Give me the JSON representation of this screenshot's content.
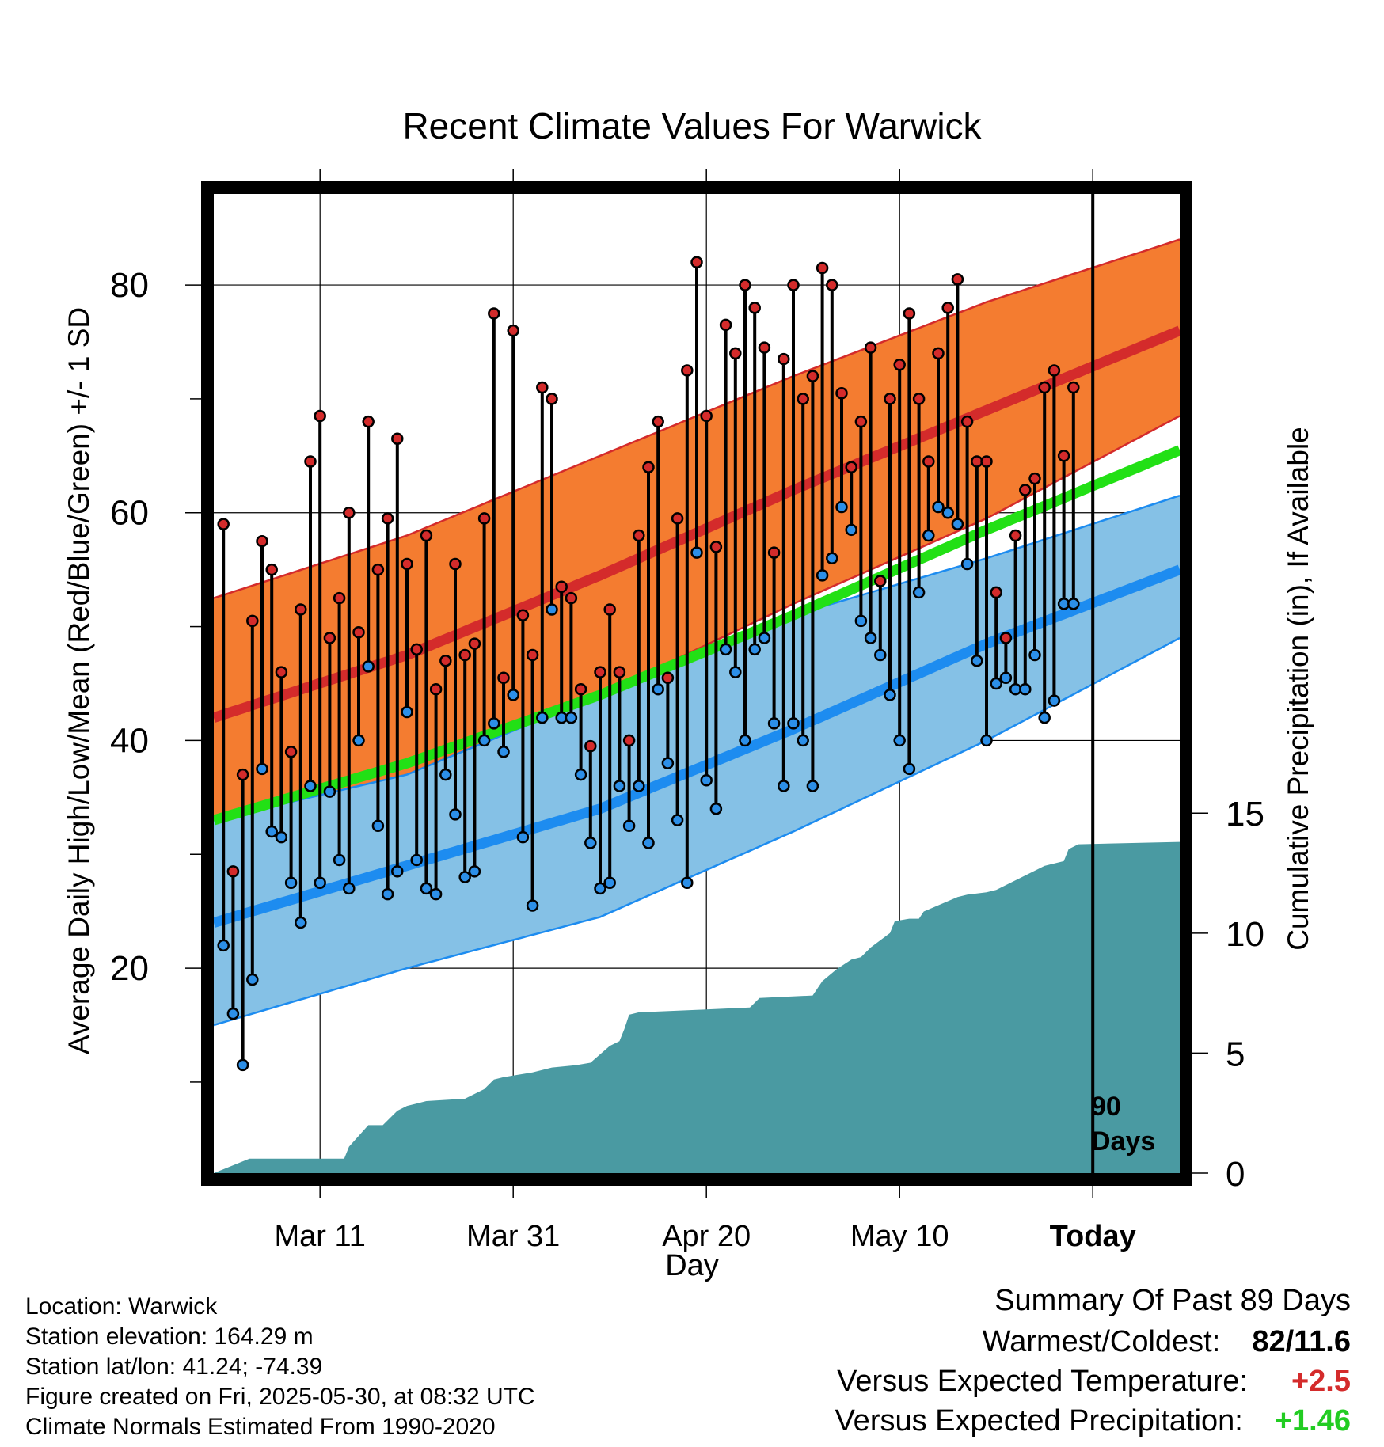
{
  "chart_data": {
    "type": "line",
    "title": "Recent Climate Values For Warwick",
    "xlabel": "Day",
    "ylabel": "Average Daily High/Low/Mean (Red/Blue/Green) +/- 1 SD",
    "y2label": "Cumulative Precipitation (in), If Available",
    "x_tick_labels": [
      "Mar 11",
      "Mar 31",
      "Apr 20",
      "May 10",
      "Today"
    ],
    "x_tick_days": [
      11,
      31,
      51,
      71,
      91
    ],
    "x_range_days": [
      0,
      100
    ],
    "today_day": 91,
    "today_window_label": "90 Days",
    "y_ticks": [
      "20",
      "40",
      "60",
      "80"
    ],
    "y_range": [
      2,
      88
    ],
    "y2_ticks": [
      "0",
      "5",
      "10",
      "15"
    ],
    "y2_range": [
      0,
      40.8
    ],
    "grid": true,
    "colors": {
      "high_band": "#f47c30",
      "high_line": "#d42b2b",
      "low_band": "#85c1e6",
      "low_line": "#1d8cf0",
      "mean_line": "#22e015",
      "precip": "#4a9aa2",
      "daily_high_dot": "#d42b2b",
      "daily_low_dot": "#2c8fe8",
      "positive_temp": "#d42b2b",
      "positive_precip": "#22cc22"
    },
    "normal_high": {
      "x": [
        0,
        20,
        40,
        60,
        80,
        100
      ],
      "mean": [
        42,
        47.5,
        54.5,
        62,
        69,
        76
      ],
      "upper": [
        52.5,
        58,
        65,
        72,
        78.5,
        84
      ],
      "lower": [
        31.5,
        37,
        44,
        52,
        59.5,
        68.5
      ]
    },
    "normal_mean": {
      "x": [
        0,
        20,
        40,
        60,
        80,
        100
      ],
      "values": [
        33,
        38,
        44,
        51,
        58.5,
        65.5
      ]
    },
    "normal_low": {
      "x": [
        0,
        20,
        40,
        60,
        80,
        100
      ],
      "mean": [
        24,
        29,
        34,
        41,
        48.5,
        55
      ],
      "upper": [
        33,
        37,
        44,
        51,
        56,
        61.5
      ],
      "lower": [
        15,
        20,
        24.5,
        32,
        40,
        49
      ]
    },
    "daily_high": [
      59,
      28.5,
      37,
      50.5,
      57.5,
      55,
      46,
      39,
      51.5,
      64.5,
      68.5,
      49,
      52.5,
      60,
      49.5,
      68,
      55,
      59.5,
      66.5,
      55.5,
      48,
      58,
      44.5,
      47,
      55.5,
      47.5,
      48.5,
      59.5,
      77.5,
      45.5,
      76,
      51,
      47.5,
      71,
      70,
      53.5,
      52.5,
      44.5,
      39.5,
      46,
      51.5,
      46,
      40,
      58,
      64,
      68,
      45.5,
      59.5,
      72.5,
      82,
      68.5,
      57,
      76.5,
      74,
      80,
      78,
      74.5,
      56.5,
      73.5,
      80,
      70,
      72,
      81.5,
      80,
      70.5,
      64,
      68,
      74.5,
      54,
      70,
      73,
      77.5,
      70,
      64.5,
      74,
      78,
      80.5,
      68,
      64.5,
      64.5,
      53,
      49,
      58,
      62,
      63,
      71,
      72.5,
      65,
      71
    ],
    "daily_low": [
      22,
      16,
      11.5,
      19,
      37.5,
      32,
      31.5,
      27.5,
      24,
      36,
      27.5,
      35.5,
      29.5,
      27,
      40,
      46.5,
      32.5,
      26.5,
      28.5,
      42.5,
      29.5,
      27,
      26.5,
      37,
      33.5,
      28,
      28.5,
      40,
      41.5,
      39,
      44,
      31.5,
      25.5,
      42,
      51.5,
      42,
      42,
      37,
      31,
      27,
      27.5,
      36,
      32.5,
      36,
      31,
      44.5,
      38,
      33,
      27.5,
      56.5,
      36.5,
      34,
      48,
      46,
      40,
      48,
      49,
      41.5,
      36,
      41.5,
      40,
      36,
      54.5,
      56,
      60.5,
      58.5,
      50.5,
      49,
      47.5,
      44,
      40,
      37.5,
      53,
      58,
      60.5,
      60,
      59,
      55.5,
      47,
      40,
      45,
      45.5,
      44.5,
      44.5,
      47.5,
      42,
      43.5,
      52,
      52
    ],
    "precip_cumulative": {
      "x": [
        0,
        3.7,
        13.5,
        14,
        16,
        17.5,
        19,
        20,
        21,
        22,
        26,
        28,
        29,
        30,
        33,
        35,
        37.5,
        39,
        41,
        42,
        42.5,
        43,
        44,
        50,
        55.5,
        56.5,
        62,
        63,
        64.5,
        66,
        67,
        68,
        70,
        70.5,
        72,
        73,
        73.5,
        77,
        78,
        80,
        81,
        86,
        88,
        88.5,
        89.5,
        100
      ],
      "values": [
        0,
        0.6,
        0.6,
        1.1,
        2.0,
        2.0,
        2.6,
        2.8,
        2.9,
        3.0,
        3.1,
        3.5,
        3.9,
        4.0,
        4.2,
        4.4,
        4.5,
        4.6,
        5.3,
        5.5,
        6.0,
        6.6,
        6.7,
        6.8,
        6.9,
        7.3,
        7.4,
        8.0,
        8.5,
        8.9,
        9.0,
        9.4,
        10.0,
        10.5,
        10.6,
        10.6,
        10.9,
        11.5,
        11.6,
        11.7,
        11.8,
        12.8,
        13.0,
        13.5,
        13.7,
        13.8
      ]
    }
  },
  "location_info": {
    "location": "Location: Warwick",
    "elevation": "Station elevation: 164.29 m",
    "latlon": "Station lat/lon: 41.24; -74.39",
    "created": "Figure created on Fri, 2025-05-30, at 08:32 UTC",
    "normals": "Climate Normals Estimated From 1990-2020"
  },
  "summary": {
    "title": "Summary Of Past 89 Days",
    "warmest_coldest_label": "Warmest/Coldest:",
    "warmest_coldest_value": "82/11.6",
    "temp_label": "Versus Expected Temperature:",
    "temp_value": "+2.5",
    "precip_label": "Versus Expected Precipitation:",
    "precip_value": "+1.46"
  }
}
